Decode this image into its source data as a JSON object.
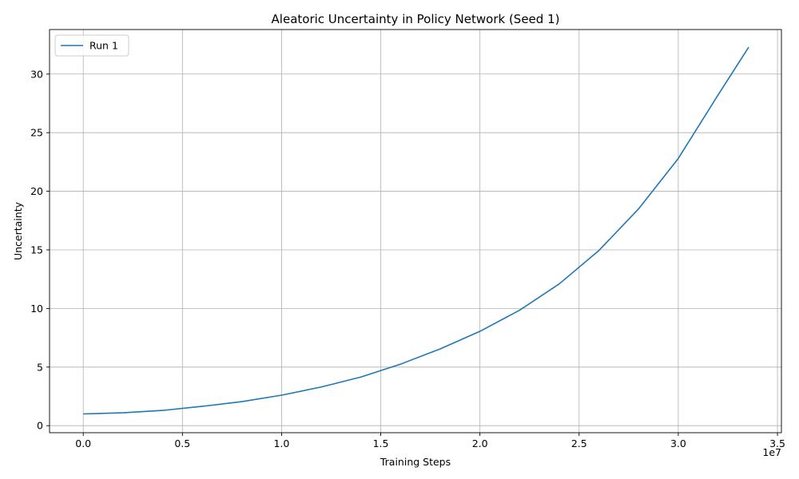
{
  "chart_data": {
    "type": "line",
    "title": "Aleatoric Uncertainty in Policy Network (Seed 1)",
    "xlabel": "Training Steps",
    "ylabel": "Uncertainty",
    "x_offset_label": "1e7",
    "xlim": [
      -1700000,
      35200000
    ],
    "ylim": [
      -0.6,
      33.8
    ],
    "xticks": [
      0,
      5000000,
      10000000,
      15000000,
      20000000,
      25000000,
      30000000,
      35000000
    ],
    "xtick_labels": [
      "0.0",
      "0.5",
      "1.0",
      "1.5",
      "2.0",
      "2.5",
      "3.0",
      "3.5"
    ],
    "yticks": [
      0,
      5,
      10,
      15,
      20,
      25,
      30
    ],
    "ytick_labels": [
      "0",
      "5",
      "10",
      "15",
      "20",
      "25",
      "30"
    ],
    "grid": true,
    "legend_position": "top-left",
    "series": [
      {
        "name": "Run 1",
        "color": "#1f77b4",
        "x": [
          0,
          2000000,
          4000000,
          6000000,
          8000000,
          10000000,
          12000000,
          14000000,
          16000000,
          18000000,
          20000000,
          22000000,
          24000000,
          26000000,
          28000000,
          30000000,
          32000000,
          33550000
        ],
        "y": [
          1.0,
          1.1,
          1.3,
          1.65,
          2.05,
          2.6,
          3.3,
          4.15,
          5.25,
          6.55,
          8.05,
          9.85,
          12.1,
          14.95,
          18.5,
          22.8,
          28.2,
          32.3
        ]
      }
    ]
  }
}
